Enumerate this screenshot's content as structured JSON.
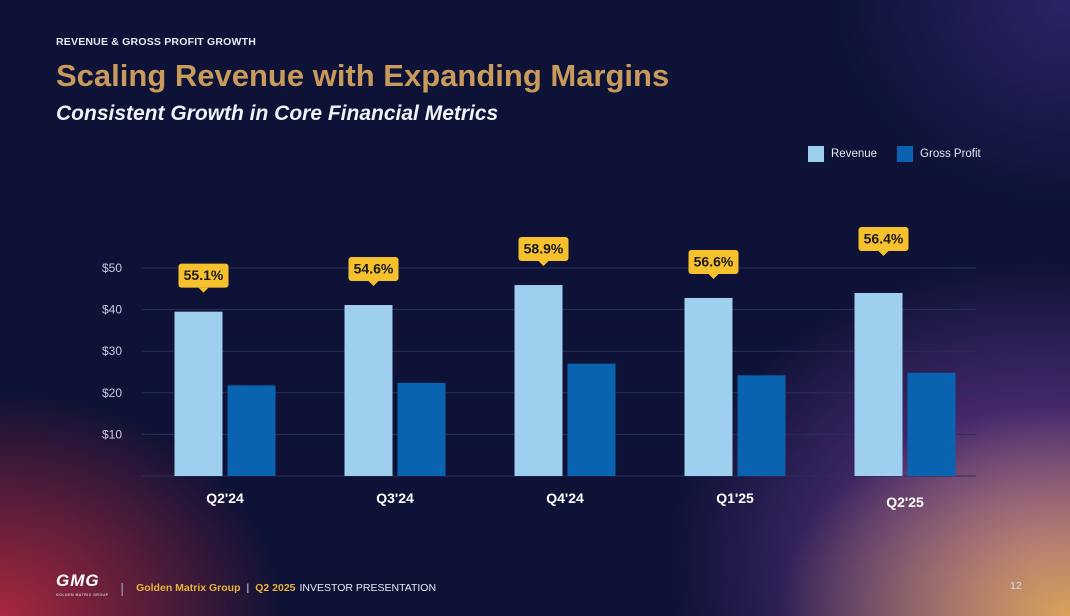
{
  "header": {
    "eyebrow": "REVENUE & GROSS PROFIT GROWTH",
    "title": "Scaling Revenue with Expanding Margins",
    "subtitle": "Consistent Growth in Core Financial Metrics"
  },
  "colors": {
    "revenue": "#9fcfee",
    "gross_profit": "#0a63b0",
    "badge": "#f7c12e",
    "title": "#c89a5c",
    "footer_accent": "#e6b43a"
  },
  "chart_data": {
    "type": "bar",
    "categories": [
      "Q2'24",
      "Q3'24",
      "Q4'24",
      "Q1'25",
      "Q2'25"
    ],
    "series": [
      {
        "name": "Revenue",
        "values": [
          39.5,
          41.1,
          45.9,
          42.8,
          44.0
        ]
      },
      {
        "name": "Gross Profit",
        "values": [
          21.8,
          22.4,
          27.0,
          24.2,
          24.8
        ]
      }
    ],
    "annotations": [
      "55.1%",
      "54.6%",
      "58.9%",
      "56.6%",
      "56.4%"
    ],
    "yticks": [
      10,
      20,
      30,
      40,
      50
    ],
    "ytick_labels": [
      "$10",
      "$20",
      "$30",
      "$40",
      "$50"
    ],
    "ylim": [
      0,
      50
    ],
    "grid": true,
    "legend": "top-right",
    "title": "",
    "xlabel": "",
    "ylabel": ""
  },
  "footer": {
    "logo_text": "GMG",
    "logo_subtext": "GOLDEN MATRIX GROUP",
    "company": "Golden Matrix Group",
    "quarter": "Q2 2025",
    "presentation": "INVESTOR PRESENTATION",
    "page_number": "12"
  }
}
